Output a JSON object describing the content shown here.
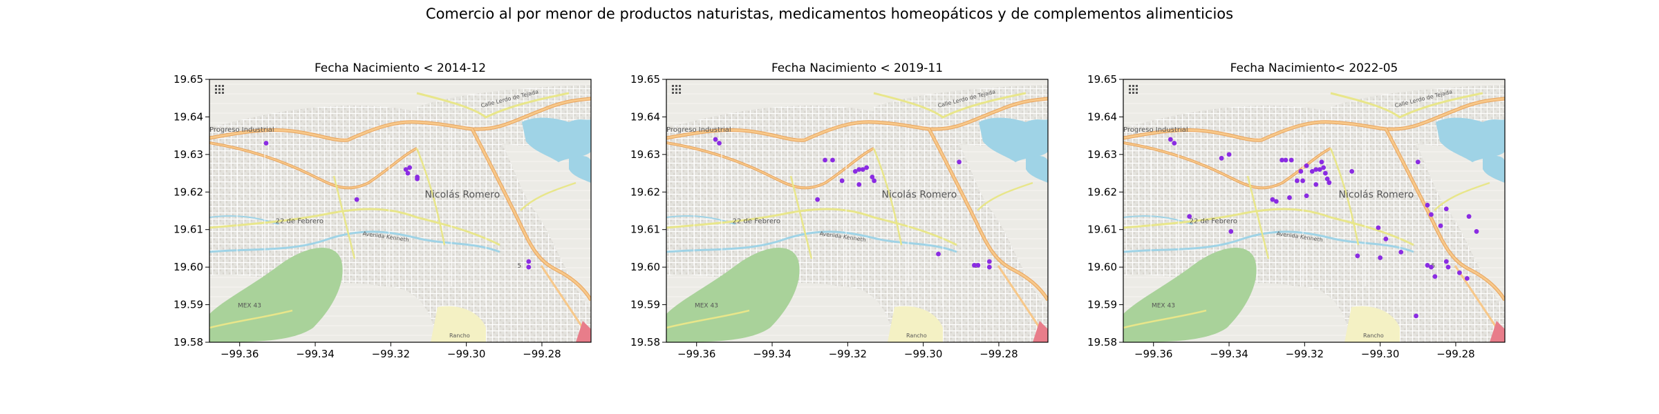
{
  "figure": {
    "suptitle": "Comercio al por menor de productos naturistas, medicamentos homeopáticos y de complementos alimenticios"
  },
  "map_labels": {
    "town": "Nicolás Romero",
    "progreso": "Progreso Industrial",
    "febrero": "22 de Febrero",
    "avenida": "Avenida Kenneth",
    "calle": "Calle Lerdo de Tejada",
    "highway": "MEX 43",
    "rancho": "Rancho",
    "route5": "5"
  },
  "colors": {
    "points": "#8a2be2",
    "map_bg": "#ecebe6",
    "water": "#9fd3e6",
    "park": "#a9d29a",
    "major_road": "#f2b56b",
    "secondary_road": "#e8e68a"
  },
  "chart_data": [
    {
      "type": "scatter",
      "title": "Fecha Nacimiento < 2014-12",
      "xlim": [
        -99.368,
        -99.267
      ],
      "ylim": [
        19.58,
        19.65
      ],
      "xticks": [
        -99.36,
        -99.34,
        -99.32,
        -99.3,
        -99.28
      ],
      "xtick_labels": [
        "−99.36",
        "−99.34",
        "−99.32",
        "−99.30",
        "−99.28"
      ],
      "yticks": [
        19.58,
        19.59,
        19.6,
        19.61,
        19.62,
        19.63,
        19.64,
        19.65
      ],
      "ytick_labels": [
        "19.58",
        "19.59",
        "19.60",
        "19.61",
        "19.62",
        "19.63",
        "19.64",
        "19.65"
      ],
      "points": [
        {
          "x": -99.353,
          "y": 19.633
        },
        {
          "x": -99.329,
          "y": 19.618
        },
        {
          "x": -99.316,
          "y": 19.626
        },
        {
          "x": -99.315,
          "y": 19.6265
        },
        {
          "x": -99.3155,
          "y": 19.625
        },
        {
          "x": -99.313,
          "y": 19.624
        },
        {
          "x": -99.313,
          "y": 19.6235
        },
        {
          "x": -99.2835,
          "y": 19.6015
        },
        {
          "x": -99.2835,
          "y": 19.6
        }
      ]
    },
    {
      "type": "scatter",
      "title": "Fecha Nacimiento < 2019-11",
      "xlim": [
        -99.368,
        -99.267
      ],
      "ylim": [
        19.58,
        19.65
      ],
      "xticks": [
        -99.36,
        -99.34,
        -99.32,
        -99.3,
        -99.28
      ],
      "xtick_labels": [
        "−99.36",
        "−99.34",
        "−99.32",
        "−99.30",
        "−99.28"
      ],
      "yticks": [
        19.58,
        19.59,
        19.6,
        19.61,
        19.62,
        19.63,
        19.64,
        19.65
      ],
      "ytick_labels": [
        "19.58",
        "19.59",
        "19.60",
        "19.61",
        "19.62",
        "19.63",
        "19.64",
        "19.65"
      ],
      "points": [
        {
          "x": -99.355,
          "y": 19.634
        },
        {
          "x": -99.354,
          "y": 19.633
        },
        {
          "x": -99.326,
          "y": 19.6285
        },
        {
          "x": -99.324,
          "y": 19.6285
        },
        {
          "x": -99.328,
          "y": 19.618
        },
        {
          "x": -99.3215,
          "y": 19.623
        },
        {
          "x": -99.318,
          "y": 19.6255
        },
        {
          "x": -99.317,
          "y": 19.626
        },
        {
          "x": -99.316,
          "y": 19.626
        },
        {
          "x": -99.315,
          "y": 19.6265
        },
        {
          "x": -99.317,
          "y": 19.622
        },
        {
          "x": -99.3135,
          "y": 19.624
        },
        {
          "x": -99.313,
          "y": 19.623
        },
        {
          "x": -99.2905,
          "y": 19.628
        },
        {
          "x": -99.296,
          "y": 19.6035
        },
        {
          "x": -99.2865,
          "y": 19.6005
        },
        {
          "x": -99.2855,
          "y": 19.6005
        },
        {
          "x": -99.2825,
          "y": 19.6015
        },
        {
          "x": -99.2825,
          "y": 19.6
        }
      ]
    },
    {
      "type": "scatter",
      "title": "Fecha Nacimiento< 2022-05",
      "xlim": [
        -99.368,
        -99.267
      ],
      "ylim": [
        19.58,
        19.65
      ],
      "xticks": [
        -99.36,
        -99.34,
        -99.32,
        -99.3,
        -99.28
      ],
      "xtick_labels": [
        "−99.36",
        "−99.34",
        "−99.32",
        "−99.30",
        "−99.28"
      ],
      "yticks": [
        19.58,
        19.59,
        19.6,
        19.61,
        19.62,
        19.63,
        19.64,
        19.65
      ],
      "ytick_labels": [
        "19.58",
        "19.59",
        "19.60",
        "19.61",
        "19.62",
        "19.63",
        "19.64",
        "19.65"
      ],
      "points": [
        {
          "x": -99.3555,
          "y": 19.634
        },
        {
          "x": -99.3545,
          "y": 19.633
        },
        {
          "x": -99.342,
          "y": 19.629
        },
        {
          "x": -99.34,
          "y": 19.63
        },
        {
          "x": -99.326,
          "y": 19.6285
        },
        {
          "x": -99.325,
          "y": 19.6285
        },
        {
          "x": -99.3235,
          "y": 19.6285
        },
        {
          "x": -99.3195,
          "y": 19.627
        },
        {
          "x": -99.3155,
          "y": 19.628
        },
        {
          "x": -99.318,
          "y": 19.6255
        },
        {
          "x": -99.317,
          "y": 19.626
        },
        {
          "x": -99.316,
          "y": 19.626
        },
        {
          "x": -99.315,
          "y": 19.6265
        },
        {
          "x": -99.3145,
          "y": 19.625
        },
        {
          "x": -99.314,
          "y": 19.6235
        },
        {
          "x": -99.3135,
          "y": 19.6225
        },
        {
          "x": -99.321,
          "y": 19.6255
        },
        {
          "x": -99.322,
          "y": 19.623
        },
        {
          "x": -99.3205,
          "y": 19.623
        },
        {
          "x": -99.317,
          "y": 19.622
        },
        {
          "x": -99.3075,
          "y": 19.6255
        },
        {
          "x": -99.29,
          "y": 19.628
        },
        {
          "x": -99.3195,
          "y": 19.619
        },
        {
          "x": -99.324,
          "y": 19.6185
        },
        {
          "x": -99.3285,
          "y": 19.618
        },
        {
          "x": -99.3275,
          "y": 19.6175
        },
        {
          "x": -99.3505,
          "y": 19.6135
        },
        {
          "x": -99.3395,
          "y": 19.6095
        },
        {
          "x": -99.2875,
          "y": 19.6165
        },
        {
          "x": -99.2865,
          "y": 19.614
        },
        {
          "x": -99.2825,
          "y": 19.6155
        },
        {
          "x": -99.284,
          "y": 19.611
        },
        {
          "x": -99.2765,
          "y": 19.6135
        },
        {
          "x": -99.2745,
          "y": 19.6095
        },
        {
          "x": -99.3005,
          "y": 19.6105
        },
        {
          "x": -99.2985,
          "y": 19.6075
        },
        {
          "x": -99.306,
          "y": 19.603
        },
        {
          "x": -99.3,
          "y": 19.6025
        },
        {
          "x": -99.2945,
          "y": 19.604
        },
        {
          "x": -99.2875,
          "y": 19.6005
        },
        {
          "x": -99.2865,
          "y": 19.6
        },
        {
          "x": -99.2825,
          "y": 19.6015
        },
        {
          "x": -99.282,
          "y": 19.6
        },
        {
          "x": -99.2855,
          "y": 19.5975
        },
        {
          "x": -99.279,
          "y": 19.5985
        },
        {
          "x": -99.277,
          "y": 19.597
        },
        {
          "x": -99.2905,
          "y": 19.587
        }
      ]
    }
  ]
}
